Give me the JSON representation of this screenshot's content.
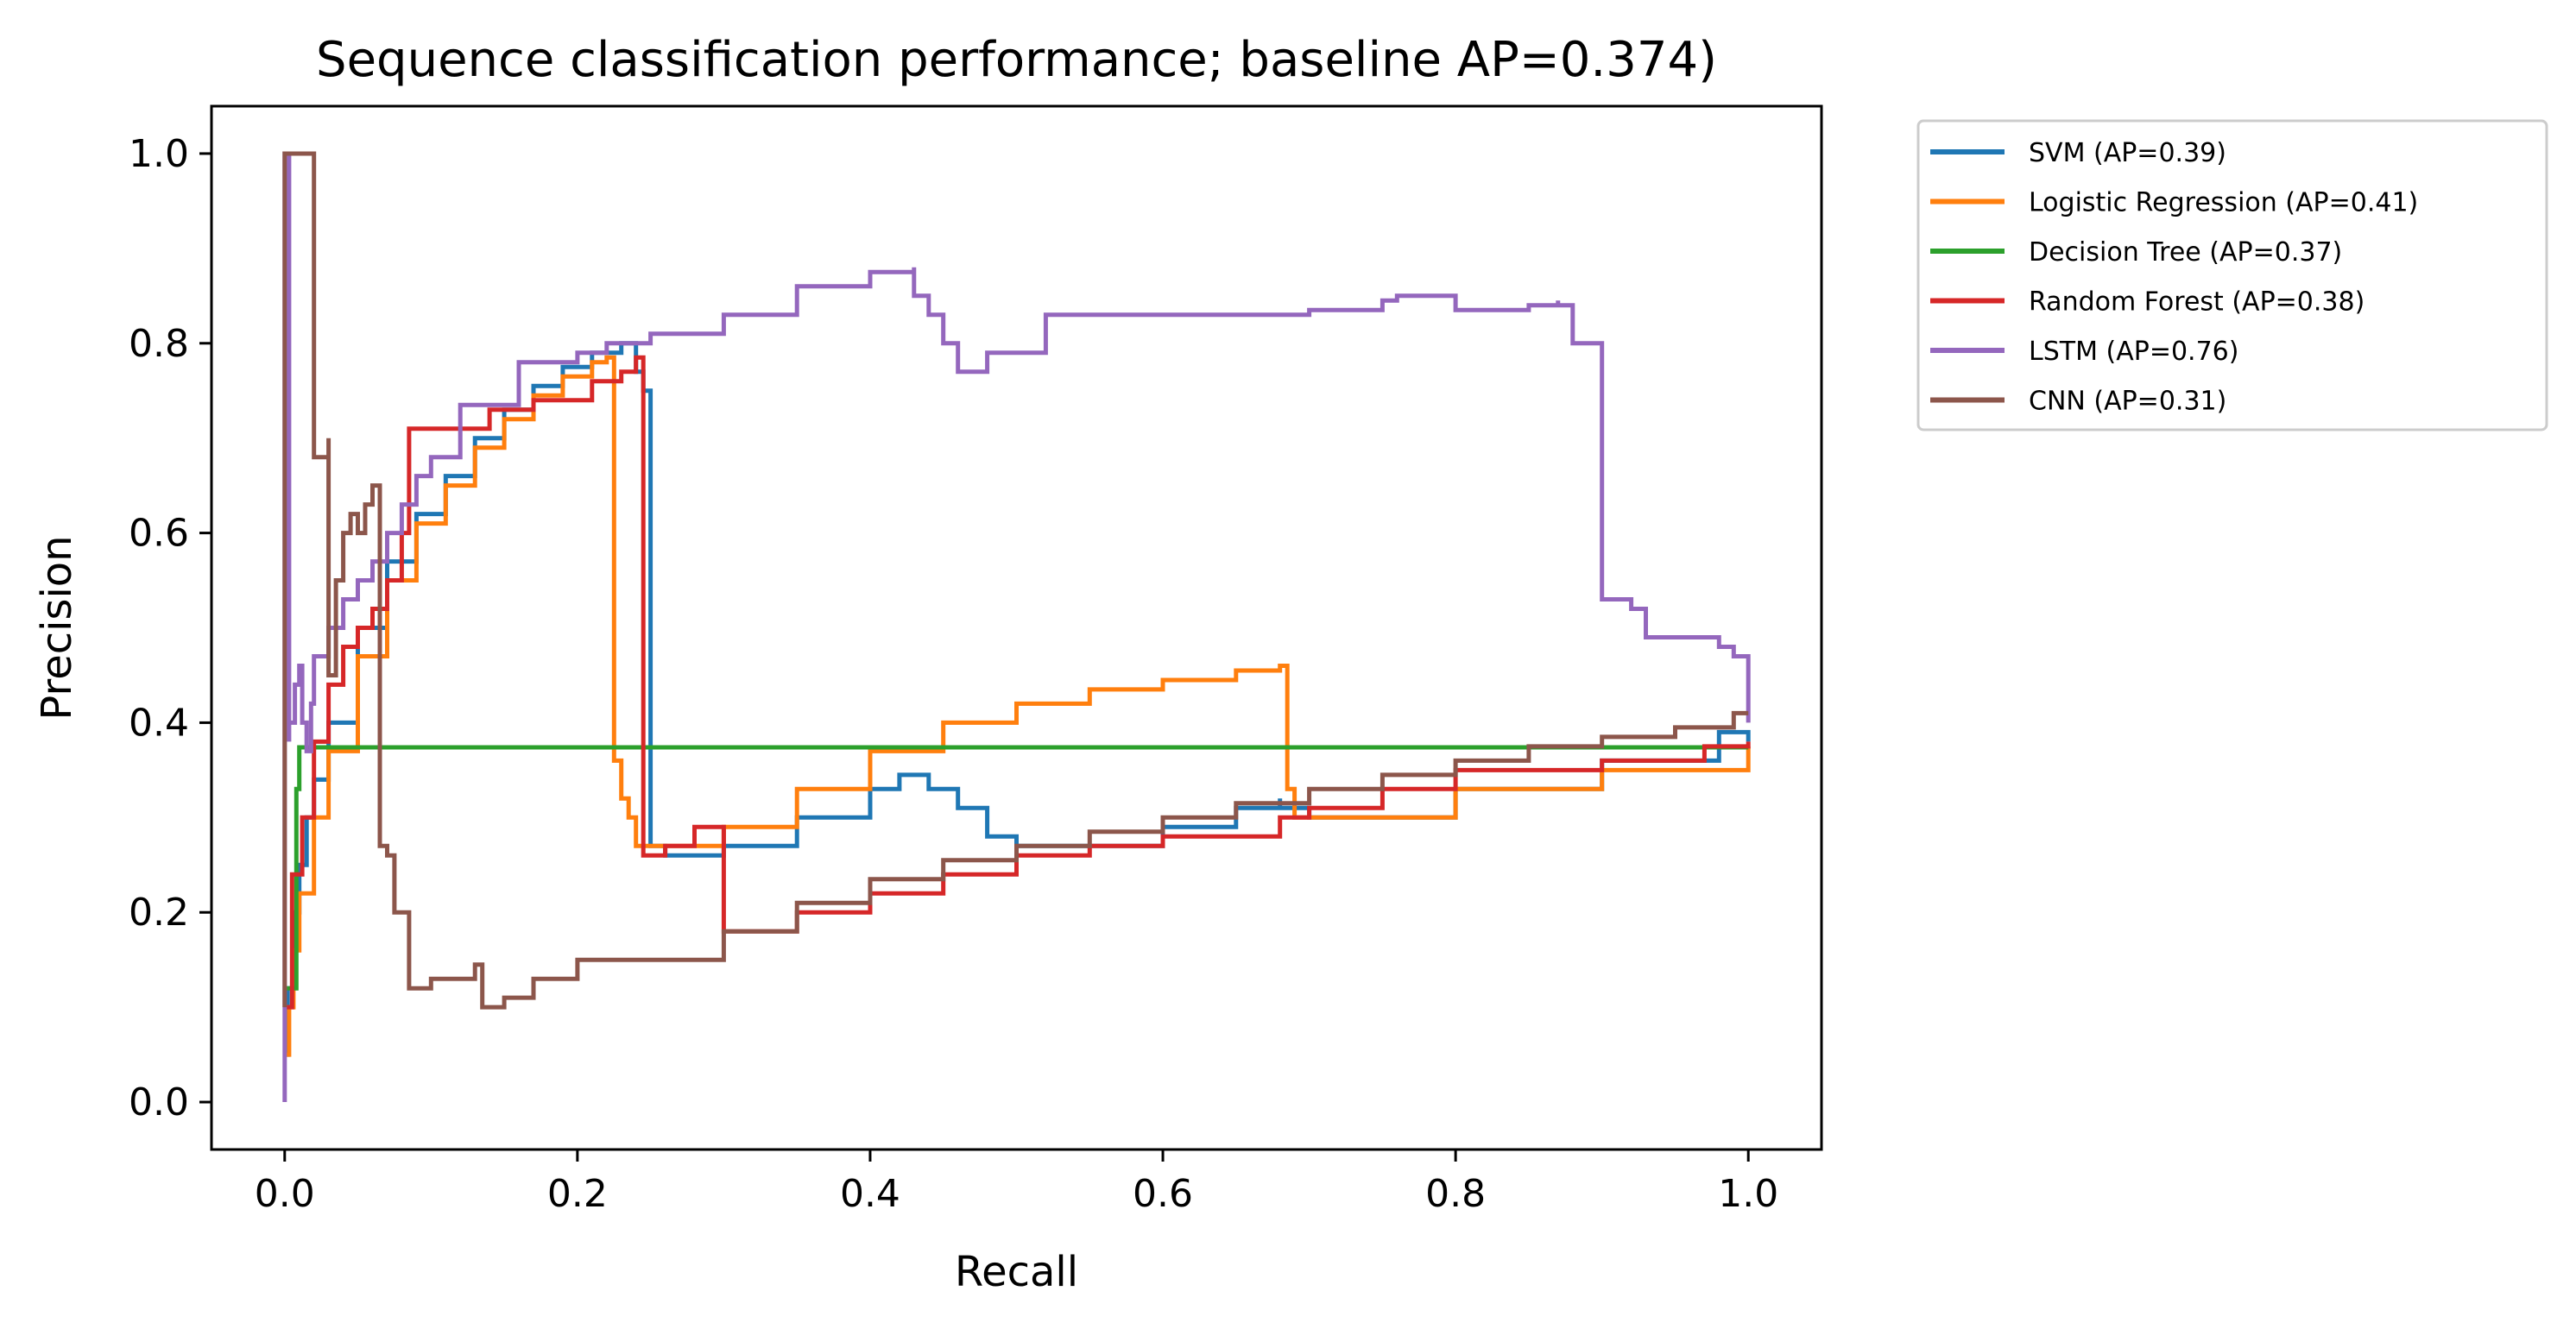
{
  "chart_data": {
    "type": "line",
    "title": "Sequence classification performance; baseline AP=0.374)",
    "xlabel": "Recall",
    "ylabel": "Precision",
    "xlim": [
      -0.05,
      1.05
    ],
    "ylim": [
      -0.05,
      1.05
    ],
    "xticks": [
      0.0,
      0.2,
      0.4,
      0.6,
      0.8,
      1.0
    ],
    "yticks": [
      0.0,
      0.2,
      0.4,
      0.6,
      0.8,
      1.0
    ],
    "xtick_labels": [
      "0.0",
      "0.2",
      "0.4",
      "0.6",
      "0.8",
      "1.0"
    ],
    "ytick_labels": [
      "0.0",
      "0.2",
      "0.4",
      "0.6",
      "0.8",
      "1.0"
    ],
    "grid": false,
    "legend_position": "outside right, top",
    "series": [
      {
        "name": "SVM (AP=0.39)",
        "color": "#1f77b4",
        "x": [
          0.0,
          0.002,
          0.006,
          0.01,
          0.015,
          0.02,
          0.03,
          0.05,
          0.07,
          0.09,
          0.11,
          0.13,
          0.15,
          0.17,
          0.19,
          0.21,
          0.23,
          0.24,
          0.24,
          0.245,
          0.25,
          0.26,
          0.3,
          0.35,
          0.4,
          0.42,
          0.44,
          0.46,
          0.48,
          0.5,
          0.55,
          0.6,
          0.65,
          0.68,
          0.68,
          0.7,
          0.8,
          0.9,
          0.98,
          0.99,
          1.0
        ],
        "y": [
          0.05,
          0.12,
          0.2,
          0.25,
          0.3,
          0.34,
          0.4,
          0.5,
          0.57,
          0.62,
          0.66,
          0.7,
          0.73,
          0.755,
          0.775,
          0.79,
          0.8,
          0.8,
          0.77,
          0.75,
          0.27,
          0.26,
          0.27,
          0.3,
          0.33,
          0.345,
          0.33,
          0.31,
          0.28,
          0.27,
          0.27,
          0.29,
          0.31,
          0.32,
          0.31,
          0.3,
          0.33,
          0.36,
          0.39,
          0.39,
          0.38
        ]
      },
      {
        "name": "Logistic Regression (AP=0.41)",
        "color": "#ff7f0e",
        "x": [
          0.0,
          0.003,
          0.006,
          0.01,
          0.02,
          0.03,
          0.05,
          0.07,
          0.09,
          0.11,
          0.13,
          0.15,
          0.17,
          0.19,
          0.21,
          0.22,
          0.225,
          0.225,
          0.23,
          0.235,
          0.24,
          0.25,
          0.3,
          0.35,
          0.4,
          0.45,
          0.5,
          0.55,
          0.6,
          0.65,
          0.68,
          0.68,
          0.685,
          0.69,
          0.8,
          0.9,
          1.0
        ],
        "y": [
          0.05,
          0.1,
          0.16,
          0.22,
          0.3,
          0.37,
          0.47,
          0.55,
          0.61,
          0.65,
          0.69,
          0.72,
          0.745,
          0.765,
          0.78,
          0.785,
          0.78,
          0.36,
          0.32,
          0.3,
          0.27,
          0.27,
          0.29,
          0.33,
          0.37,
          0.4,
          0.42,
          0.435,
          0.445,
          0.455,
          0.46,
          0.46,
          0.33,
          0.3,
          0.33,
          0.35,
          0.375
        ]
      },
      {
        "name": "Decision Tree (AP=0.37)",
        "color": "#2ca02c",
        "x": [
          0.0,
          0.005,
          0.008,
          0.008,
          0.01,
          1.0
        ],
        "y": [
          0.12,
          0.12,
          0.25,
          0.33,
          0.374,
          0.374
        ]
      },
      {
        "name": "Random Forest (AP=0.38)",
        "color": "#d62728",
        "x": [
          0.0,
          0.005,
          0.005,
          0.012,
          0.012,
          0.02,
          0.03,
          0.04,
          0.05,
          0.06,
          0.07,
          0.08,
          0.085,
          0.085,
          0.1,
          0.14,
          0.14,
          0.17,
          0.21,
          0.23,
          0.24,
          0.245,
          0.245,
          0.25,
          0.26,
          0.28,
          0.3,
          0.3,
          0.35,
          0.4,
          0.45,
          0.5,
          0.55,
          0.6,
          0.65,
          0.68,
          0.7,
          0.7,
          0.75,
          0.8,
          0.9,
          0.97,
          1.0
        ],
        "y": [
          0.1,
          0.1,
          0.24,
          0.24,
          0.3,
          0.38,
          0.44,
          0.48,
          0.5,
          0.52,
          0.55,
          0.6,
          0.64,
          0.71,
          0.71,
          0.71,
          0.73,
          0.74,
          0.76,
          0.77,
          0.785,
          0.785,
          0.26,
          0.26,
          0.27,
          0.29,
          0.29,
          0.18,
          0.2,
          0.22,
          0.24,
          0.26,
          0.27,
          0.28,
          0.28,
          0.3,
          0.3,
          0.31,
          0.33,
          0.35,
          0.36,
          0.375,
          0.38
        ]
      },
      {
        "name": "LSTM (AP=0.76)",
        "color": "#9467bd",
        "x": [
          0.0,
          0.0,
          0.003,
          0.003,
          0.007,
          0.01,
          0.012,
          0.015,
          0.018,
          0.02,
          0.03,
          0.04,
          0.05,
          0.06,
          0.07,
          0.08,
          0.09,
          0.1,
          0.12,
          0.12,
          0.16,
          0.16,
          0.2,
          0.22,
          0.25,
          0.3,
          0.35,
          0.4,
          0.43,
          0.43,
          0.44,
          0.45,
          0.46,
          0.48,
          0.5,
          0.51,
          0.52,
          0.52,
          0.6,
          0.65,
          0.7,
          0.75,
          0.76,
          0.8,
          0.85,
          0.87,
          0.87,
          0.88,
          0.9,
          0.9,
          0.92,
          0.93,
          0.95,
          0.98,
          0.99,
          1.0
        ],
        "y": [
          0.0,
          1.0,
          0.38,
          0.4,
          0.44,
          0.46,
          0.4,
          0.37,
          0.42,
          0.47,
          0.5,
          0.53,
          0.55,
          0.57,
          0.6,
          0.63,
          0.66,
          0.68,
          0.7,
          0.735,
          0.735,
          0.78,
          0.79,
          0.8,
          0.81,
          0.83,
          0.86,
          0.875,
          0.88,
          0.85,
          0.83,
          0.8,
          0.77,
          0.79,
          0.79,
          0.79,
          0.79,
          0.83,
          0.83,
          0.83,
          0.835,
          0.845,
          0.85,
          0.835,
          0.84,
          0.845,
          0.84,
          0.8,
          0.76,
          0.53,
          0.52,
          0.49,
          0.49,
          0.48,
          0.47,
          0.4
        ]
      },
      {
        "name": "CNN (AP=0.31)",
        "color": "#8c564b",
        "x": [
          0.0,
          0.0,
          0.02,
          0.02,
          0.025,
          0.03,
          0.03,
          0.035,
          0.04,
          0.045,
          0.05,
          0.055,
          0.06,
          0.065,
          0.065,
          0.07,
          0.075,
          0.08,
          0.085,
          0.09,
          0.1,
          0.13,
          0.135,
          0.135,
          0.15,
          0.17,
          0.2,
          0.2,
          0.22,
          0.24,
          0.25,
          0.3,
          0.35,
          0.4,
          0.45,
          0.5,
          0.55,
          0.6,
          0.65,
          0.7,
          0.75,
          0.8,
          0.85,
          0.9,
          0.95,
          0.99,
          1.0
        ],
        "y": [
          0.1,
          1.0,
          1.0,
          0.68,
          0.68,
          0.7,
          0.45,
          0.55,
          0.6,
          0.62,
          0.6,
          0.63,
          0.65,
          0.65,
          0.27,
          0.26,
          0.2,
          0.2,
          0.12,
          0.12,
          0.13,
          0.145,
          0.11,
          0.1,
          0.11,
          0.13,
          0.13,
          0.15,
          0.15,
          0.15,
          0.15,
          0.18,
          0.21,
          0.235,
          0.255,
          0.27,
          0.285,
          0.3,
          0.315,
          0.33,
          0.345,
          0.36,
          0.375,
          0.385,
          0.395,
          0.41,
          0.41
        ]
      }
    ]
  }
}
